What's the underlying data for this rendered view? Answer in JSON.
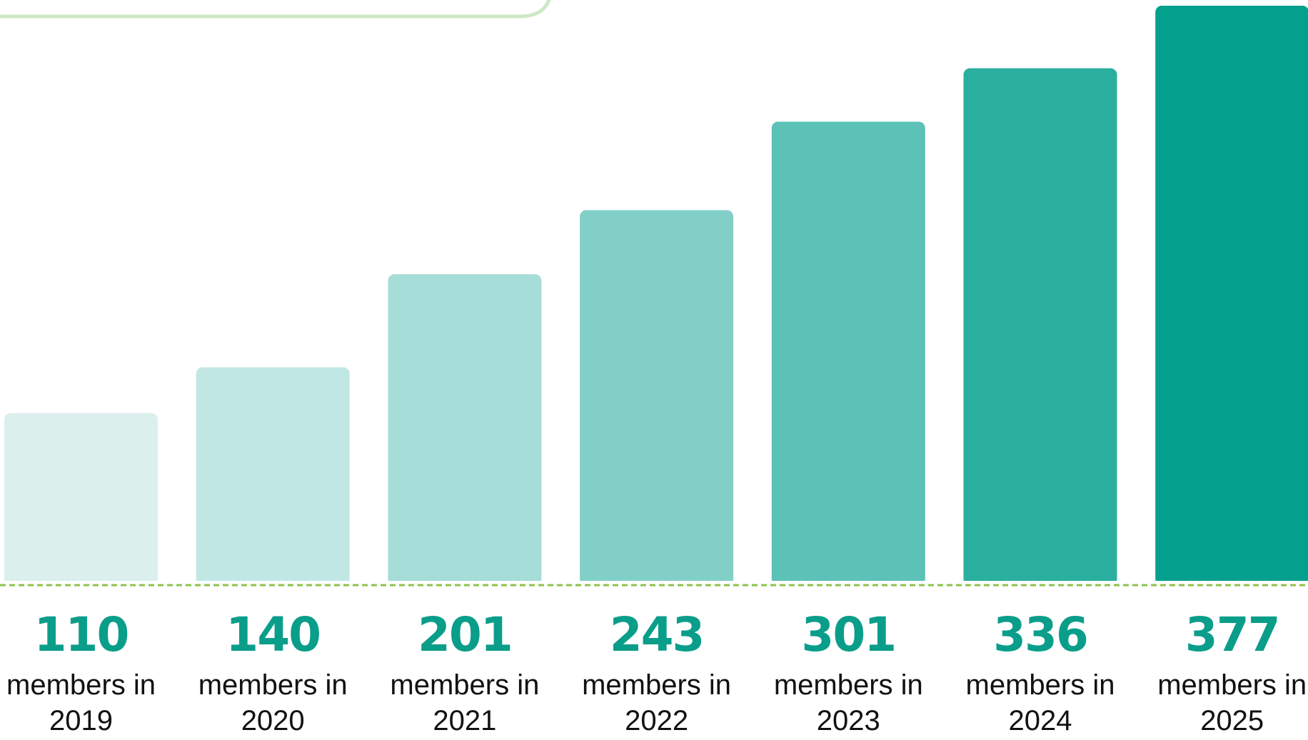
{
  "chart_data": {
    "type": "bar",
    "categories": [
      "members in 2019",
      "members in 2020",
      "members in 2021",
      "members in 2022",
      "members in 2023",
      "members in 2024",
      "members in 2025"
    ],
    "values": [
      110,
      140,
      201,
      243,
      301,
      336,
      377
    ],
    "colors": [
      "#dbefed",
      "#c1e7e4",
      "#a7ddd8",
      "#82cfc8",
      "#5cc2b7",
      "#2aaf9f",
      "#04a08e"
    ],
    "value_color": "#0a9e8a",
    "baseline_color": "#8bc34a"
  }
}
